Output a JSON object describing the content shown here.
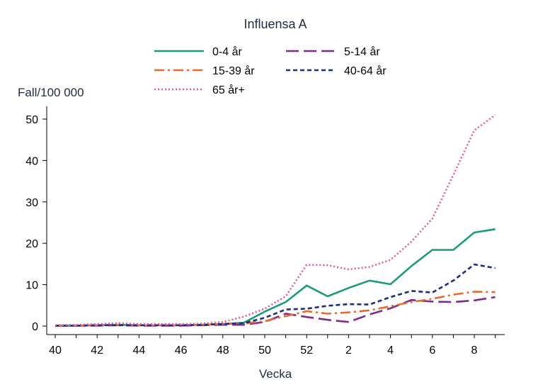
{
  "chart_data": {
    "type": "line",
    "title": "Influensa A",
    "xlabel": "Vecka",
    "ylabel": "Fall/100 000",
    "ylim": [
      0,
      52
    ],
    "yticks": [
      0,
      10,
      20,
      30,
      40,
      50
    ],
    "categories": [
      "40",
      "41",
      "42",
      "43",
      "44",
      "45",
      "46",
      "47",
      "48",
      "49",
      "50",
      "51",
      "52",
      "1",
      "2",
      "3",
      "4",
      "5",
      "6",
      "7",
      "8",
      "9"
    ],
    "xtick_labels": [
      "40",
      "42",
      "44",
      "46",
      "48",
      "50",
      "52",
      "2",
      "4",
      "6",
      "8"
    ],
    "series": [
      {
        "name": "0-4 år",
        "color": "#1a9c7b",
        "dash": "solid",
        "values": [
          0.1,
          0.1,
          0.2,
          0.3,
          0.2,
          0.2,
          0.2,
          0.3,
          0.5,
          0.8,
          3.5,
          5.8,
          9.8,
          7.2,
          9.2,
          11.0,
          10.1,
          14.5,
          18.4,
          18.4,
          22.6,
          23.4
        ]
      },
      {
        "name": "5-14 år",
        "color": "#7e2a8e",
        "dash": "longdash",
        "values": [
          0.1,
          0.1,
          0.1,
          0.2,
          0.1,
          0.1,
          0.1,
          0.2,
          0.3,
          0.3,
          1.0,
          3.0,
          2.2,
          1.5,
          1.0,
          2.8,
          4.3,
          6.3,
          5.9,
          5.8,
          6.2,
          7.0
        ]
      },
      {
        "name": "15-39 år",
        "color": "#e8692a",
        "dash": "dashdot",
        "values": [
          0.1,
          0.1,
          0.2,
          0.3,
          0.2,
          0.2,
          0.2,
          0.3,
          0.5,
          0.6,
          1.2,
          2.4,
          3.6,
          3.0,
          3.3,
          3.8,
          4.8,
          5.8,
          6.6,
          7.6,
          8.3,
          8.2
        ]
      },
      {
        "name": "40-64 år",
        "color": "#1b2f80",
        "dash": "shortdash",
        "values": [
          0.1,
          0.1,
          0.2,
          0.2,
          0.2,
          0.2,
          0.2,
          0.3,
          0.5,
          0.7,
          2.0,
          4.0,
          4.2,
          4.9,
          5.3,
          5.2,
          7.0,
          8.5,
          8.1,
          11.0,
          14.9,
          14.0
        ]
      },
      {
        "name": "65 år+",
        "color": "#e15a9e",
        "dash": "dotted",
        "values": [
          0.2,
          0.3,
          0.5,
          0.7,
          0.5,
          0.5,
          0.5,
          0.6,
          1.0,
          2.3,
          4.2,
          7.2,
          14.8,
          14.7,
          13.7,
          14.3,
          16.0,
          20.4,
          26.0,
          36.5,
          47.3,
          51.0
        ]
      }
    ],
    "legend": {
      "placement": "top",
      "columns": 2
    }
  }
}
